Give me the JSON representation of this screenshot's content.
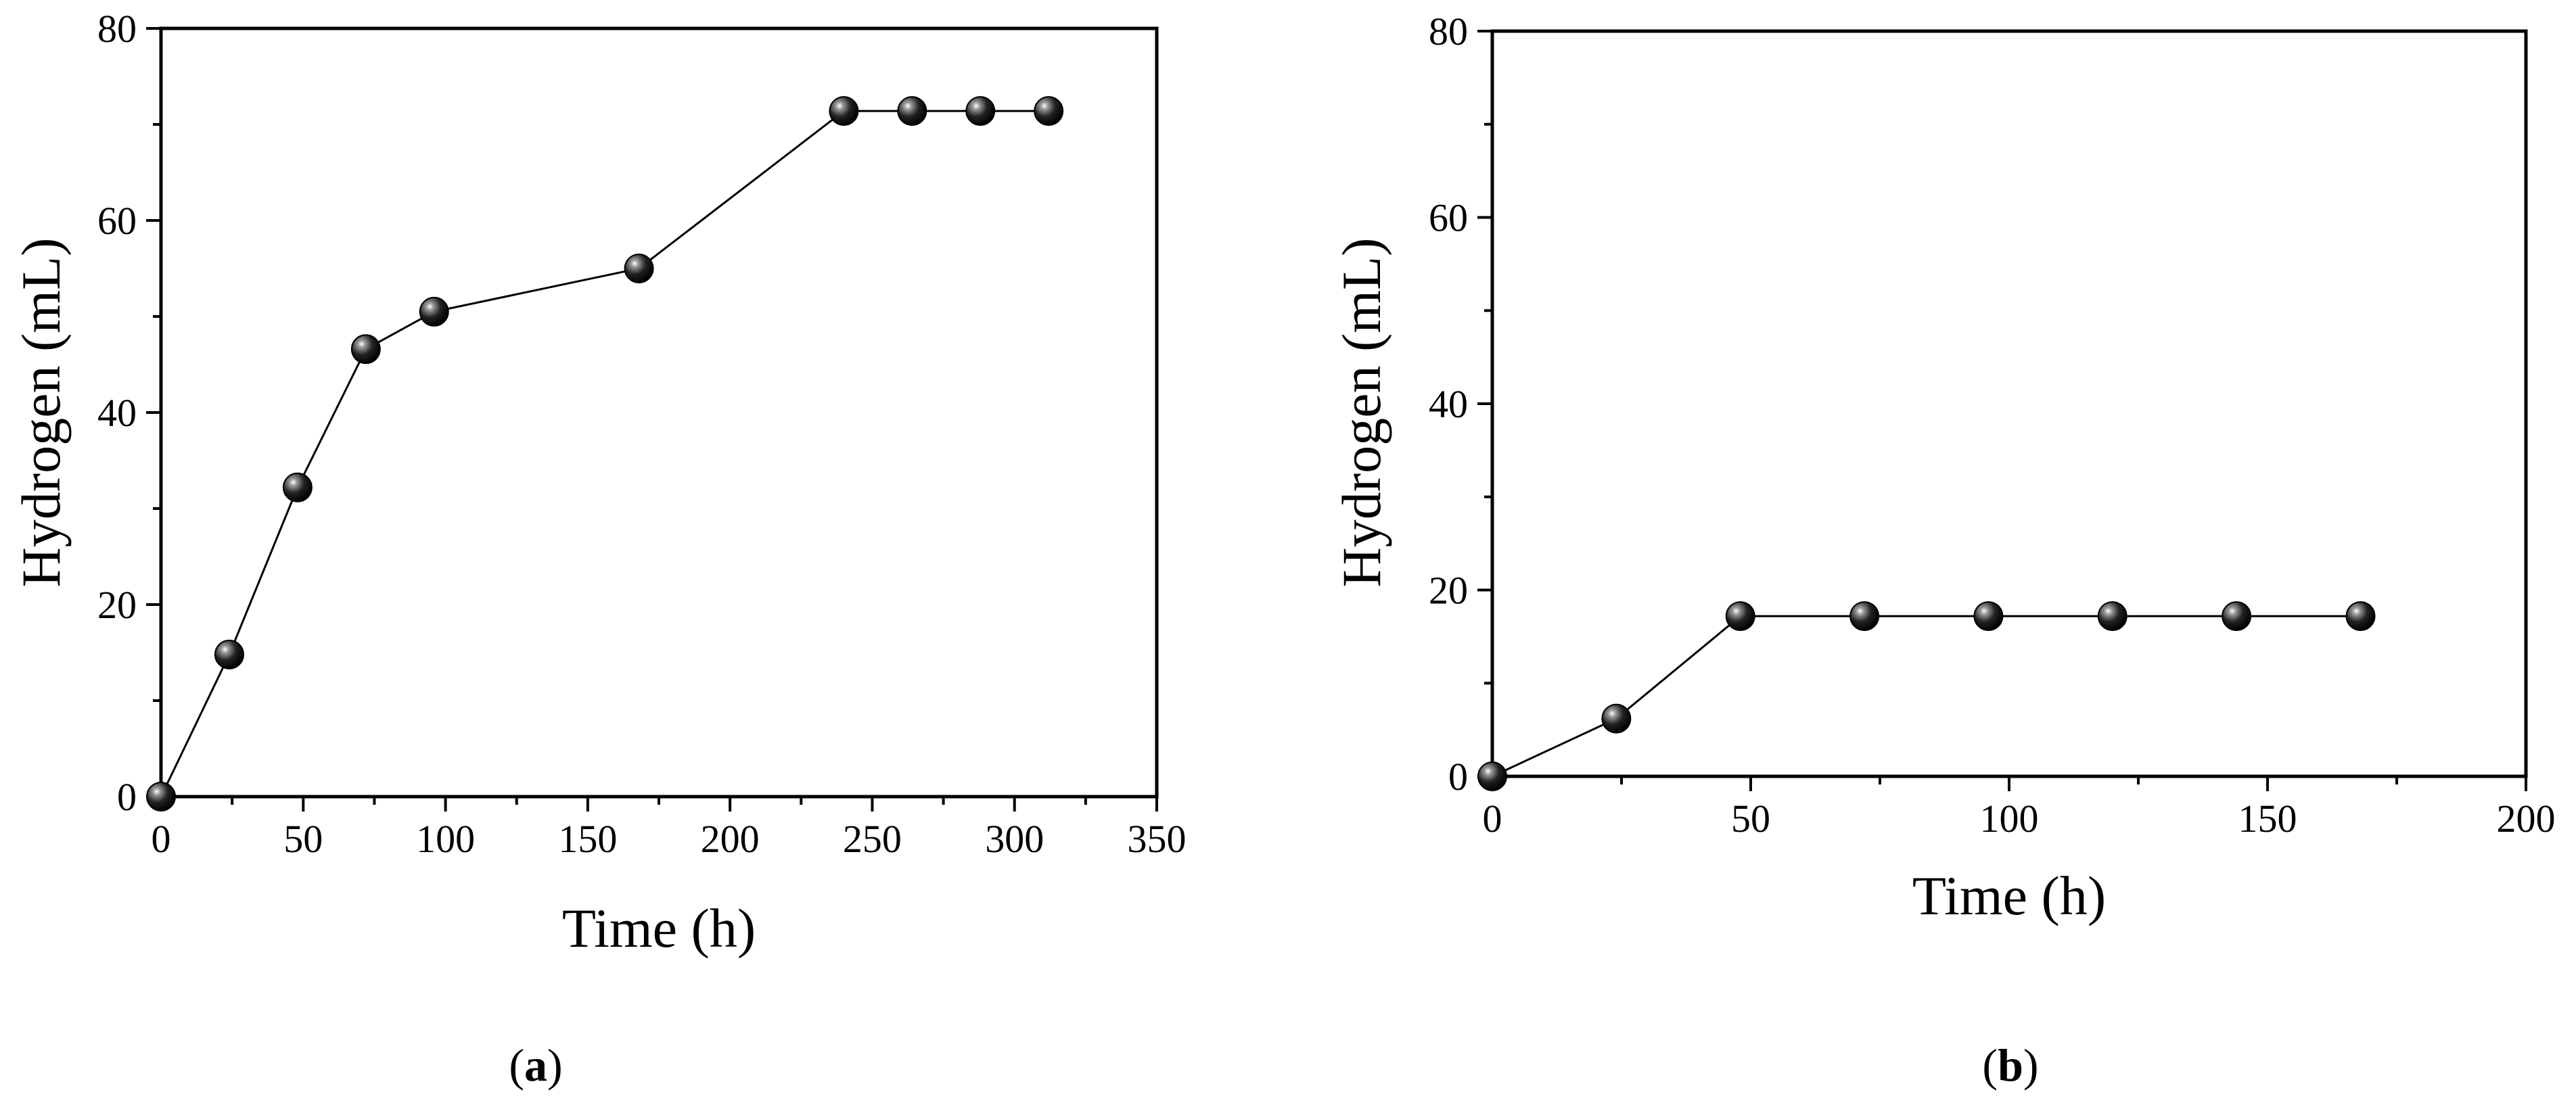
{
  "chart_data": [
    {
      "type": "line",
      "panel": "a",
      "xlabel": "Time (h)",
      "ylabel": "Hydrogen (mL)",
      "xlim": [
        0,
        350
      ],
      "ylim": [
        0,
        80
      ],
      "xticks": [
        0,
        50,
        100,
        150,
        200,
        250,
        300,
        350
      ],
      "yticks": [
        0,
        20,
        40,
        60,
        80
      ],
      "grid": false,
      "x": [
        0,
        24,
        48,
        72,
        96,
        168,
        240,
        264,
        288,
        312
      ],
      "series": [
        {
          "values": [
            0,
            14.8,
            32.2,
            46.6,
            50.5,
            55.0,
            71.4,
            71.4,
            71.4,
            71.4
          ]
        }
      ],
      "caption": {
        "open": "(",
        "letter": "a",
        "close": ")"
      }
    },
    {
      "type": "line",
      "panel": "b",
      "xlabel": "Time (h)",
      "ylabel": "Hydrogen (mL)",
      "xlim": [
        0,
        200
      ],
      "ylim": [
        0,
        80
      ],
      "xticks": [
        0,
        50,
        100,
        150,
        200
      ],
      "yticks": [
        0,
        20,
        40,
        60,
        80
      ],
      "grid": false,
      "x": [
        0,
        24,
        48,
        72,
        96,
        120,
        144,
        168
      ],
      "series": [
        {
          "values": [
            0,
            6.2,
            17.2,
            17.2,
            17.2,
            17.2,
            17.2,
            17.2
          ]
        }
      ],
      "caption": {
        "open": "(",
        "letter": "b",
        "close": ")"
      }
    }
  ]
}
